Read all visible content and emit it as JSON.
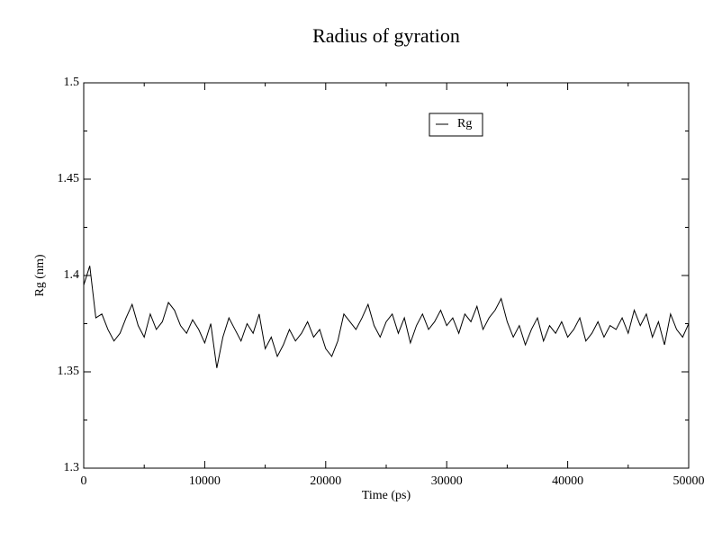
{
  "chart_data": {
    "type": "line",
    "title": "Radius of gyration",
    "x_label": "Time (ps)",
    "y_label": "Rg (nm)",
    "x": [
      0,
      500,
      1000,
      1500,
      2000,
      2500,
      3000,
      3500,
      4000,
      4500,
      5000,
      5500,
      6000,
      6500,
      7000,
      7500,
      8000,
      8500,
      9000,
      9500,
      10000,
      10500,
      11000,
      11500,
      12000,
      12500,
      13000,
      13500,
      14000,
      14500,
      15000,
      15500,
      16000,
      16500,
      17000,
      17500,
      18000,
      18500,
      19000,
      19500,
      20000,
      20500,
      21000,
      21500,
      22000,
      22500,
      23000,
      23500,
      24000,
      24500,
      25000,
      25500,
      26000,
      26500,
      27000,
      27500,
      28000,
      28500,
      29000,
      29500,
      30000,
      30500,
      31000,
      31500,
      32000,
      32500,
      33000,
      33500,
      34000,
      34500,
      35000,
      35500,
      36000,
      36500,
      37000,
      37500,
      38000,
      38500,
      39000,
      39500,
      40000,
      40500,
      41000,
      41500,
      42000,
      42500,
      43000,
      43500,
      44000,
      44500,
      45000,
      45500,
      46000,
      46500,
      47000,
      47500,
      48000,
      48500,
      49000,
      49500,
      50000
    ],
    "series": [
      {
        "name": "Rg",
        "color": "#000000",
        "values": [
          1.395,
          1.405,
          1.378,
          1.38,
          1.372,
          1.366,
          1.37,
          1.378,
          1.385,
          1.374,
          1.368,
          1.38,
          1.372,
          1.376,
          1.386,
          1.382,
          1.374,
          1.37,
          1.377,
          1.372,
          1.365,
          1.375,
          1.352,
          1.368,
          1.378,
          1.372,
          1.366,
          1.375,
          1.37,
          1.38,
          1.362,
          1.368,
          1.358,
          1.364,
          1.372,
          1.366,
          1.37,
          1.376,
          1.368,
          1.372,
          1.362,
          1.358,
          1.366,
          1.38,
          1.376,
          1.372,
          1.378,
          1.385,
          1.374,
          1.368,
          1.376,
          1.38,
          1.37,
          1.378,
          1.365,
          1.374,
          1.38,
          1.372,
          1.376,
          1.382,
          1.374,
          1.378,
          1.37,
          1.38,
          1.376,
          1.384,
          1.372,
          1.378,
          1.382,
          1.388,
          1.376,
          1.368,
          1.374,
          1.364,
          1.372,
          1.378,
          1.366,
          1.374,
          1.37,
          1.376,
          1.368,
          1.372,
          1.378,
          1.366,
          1.37,
          1.376,
          1.368,
          1.374,
          1.372,
          1.378,
          1.37,
          1.382,
          1.374,
          1.38,
          1.368,
          1.376,
          1.364,
          1.38,
          1.372,
          1.368,
          1.375
        ]
      }
    ],
    "xlim": [
      0,
      50000
    ],
    "xticks": [
      0,
      10000,
      20000,
      30000,
      40000,
      50000
    ],
    "xminor": [
      5000,
      15000,
      25000,
      35000,
      45000
    ],
    "ylim": [
      1.3,
      1.5
    ],
    "yticks": [
      1.3,
      1.35,
      1.4,
      1.45,
      1.5
    ],
    "yminor": [
      1.325,
      1.375,
      1.425,
      1.475
    ]
  }
}
